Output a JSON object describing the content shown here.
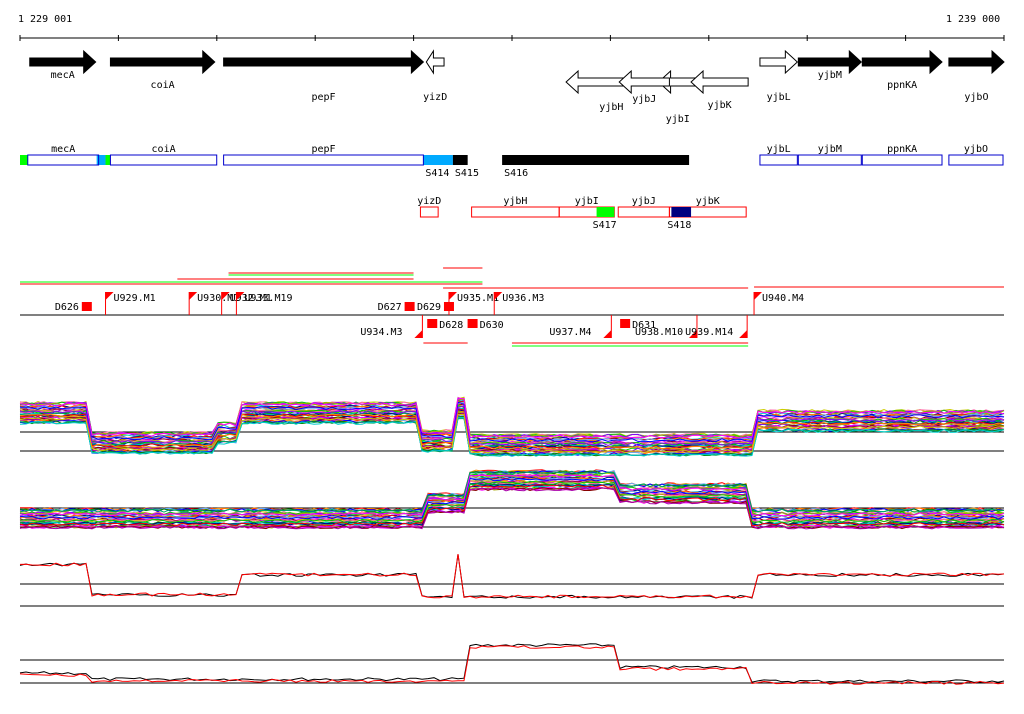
{
  "ruler": {
    "start_label": "1 229 001",
    "end_label": "1 239 000",
    "start": 1229001,
    "end": 1239000
  },
  "colors": {
    "gene_fill": "#000000",
    "box_outline": "#0000cc",
    "red": "#ff0000",
    "green": "#00ff00",
    "cyan": "#00aaff",
    "navy": "#000080",
    "track_lines": [
      "#ff0000",
      "#00cc00",
      "#0000ff",
      "#ff00ff",
      "#00cccc",
      "#cccc00",
      "#ff8800",
      "#8800ff",
      "#008800",
      "#880000",
      "#000088",
      "#ff66aa",
      "#66aaff",
      "#aaaa00",
      "#00aa66",
      "#aa00aa"
    ]
  },
  "genes": [
    {
      "name": "mecA",
      "start": 1229100,
      "end": 1229770,
      "strand": "+",
      "filled": true
    },
    {
      "name": "coiA",
      "start": 1229920,
      "end": 1230980,
      "strand": "+",
      "filled": true
    },
    {
      "name": "pepF",
      "start": 1231070,
      "end": 1233100,
      "strand": "+",
      "filled": true
    },
    {
      "name": "yizD",
      "start": 1233130,
      "end": 1233310,
      "strand": "-",
      "filled": false
    },
    {
      "name": "yjbH",
      "start": 1234550,
      "end": 1235470,
      "strand": "-",
      "filled": false
    },
    {
      "name": "yjbI",
      "start": 1235490,
      "end": 1235880,
      "strand": "-",
      "filled": false
    },
    {
      "name": "yjbJ",
      "start": 1235090,
      "end": 1235600,
      "strand": "-",
      "filled": false
    },
    {
      "name": "yjbK",
      "start": 1235820,
      "end": 1236400,
      "strand": "-",
      "filled": false
    },
    {
      "name": "yjbL",
      "start": 1236520,
      "end": 1236900,
      "strand": "+",
      "filled": false
    },
    {
      "name": "yjbM",
      "start": 1236910,
      "end": 1237550,
      "strand": "+",
      "filled": true
    },
    {
      "name": "ppnKA",
      "start": 1237560,
      "end": 1238370,
      "strand": "+",
      "filled": true
    },
    {
      "name": "yjbO",
      "start": 1238440,
      "end": 1239000,
      "strand": "+",
      "filled": true
    }
  ],
  "transcript_boxes_row1": [
    {
      "label": "mecA",
      "start": 1229080,
      "end": 1229800
    },
    {
      "label": "coiA",
      "start": 1229920,
      "end": 1231000
    },
    {
      "label": "pepF",
      "start": 1231070,
      "end": 1233100
    },
    {
      "label": "yjbL",
      "start": 1236520,
      "end": 1236900
    },
    {
      "label": "yjbM",
      "start": 1236910,
      "end": 1237550
    },
    {
      "label": "ppnKA",
      "start": 1237560,
      "end": 1238370
    },
    {
      "label": "yjbO",
      "start": 1238440,
      "end": 1238990
    }
  ],
  "segments_row1": [
    {
      "label": "",
      "start": 1229001,
      "end": 1229080,
      "color": "green"
    },
    {
      "label": "",
      "start": 1229780,
      "end": 1229870,
      "color": "cyan"
    },
    {
      "label": "",
      "start": 1229870,
      "end": 1229920,
      "color": "green"
    },
    {
      "label": "S414",
      "start": 1233100,
      "end": 1233400,
      "color": "cyan"
    },
    {
      "label": "S415",
      "start": 1233400,
      "end": 1233550,
      "color": "black"
    },
    {
      "label": "S416",
      "start": 1233900,
      "end": 1235800,
      "color": "black"
    }
  ],
  "transcript_boxes_row2": [
    {
      "label": "yizD",
      "start": 1233070,
      "end": 1233250
    },
    {
      "label": "yjbH",
      "start": 1233590,
      "end": 1234480
    },
    {
      "label": "yjbI",
      "start": 1234480,
      "end": 1235040
    },
    {
      "label": "yjbJ",
      "start": 1235080,
      "end": 1235600
    },
    {
      "label": "yjbK",
      "start": 1235600,
      "end": 1236380
    }
  ],
  "segments_row2": [
    {
      "label": "S417",
      "start": 1234860,
      "end": 1235040,
      "color": "green"
    },
    {
      "label": "S418",
      "start": 1235620,
      "end": 1235820,
      "color": "navy"
    }
  ],
  "markers_above": [
    {
      "label": "D626",
      "pos": 1229680
    },
    {
      "label": "U929.M1",
      "pos": 1229870
    },
    {
      "label": "U930.M1",
      "pos": 1230720
    },
    {
      "label": "U932.M1",
      "pos": 1231050
    },
    {
      "label": "U933.M19",
      "pos": 1231200
    },
    {
      "label": "D627",
      "pos": 1232960
    },
    {
      "label": "D629",
      "pos": 1233360
    },
    {
      "label": "U935.M1",
      "pos": 1233360
    },
    {
      "label": "U936.M3",
      "pos": 1233820
    },
    {
      "label": "U940.M4",
      "pos": 1236460
    }
  ],
  "markers_below": [
    {
      "label": "U934.M3",
      "pos": 1233090
    },
    {
      "label": "D628",
      "pos": 1233190
    },
    {
      "label": "D630",
      "pos": 1233600
    },
    {
      "label": "U937.M4",
      "pos": 1235010
    },
    {
      "label": "D631",
      "pos": 1235150
    },
    {
      "label": "U938.M10",
      "pos": 1235880
    },
    {
      "label": "U939.M14",
      "pos": 1236390
    }
  ]
}
